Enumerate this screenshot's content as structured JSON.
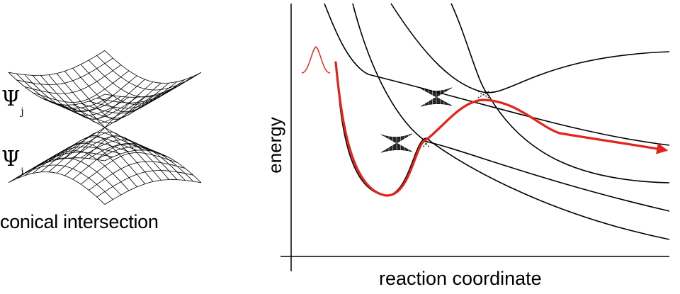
{
  "figure": {
    "inset": {
      "upper_state_symbol": "Ψ",
      "upper_state_subscript": "j",
      "lower_state_symbol": "Ψ",
      "lower_state_subscript": "i",
      "caption": "conical intersection"
    },
    "axes": {
      "xlabel": "reaction coordinate",
      "ylabel": "energy"
    },
    "colors": {
      "curves": "#000000",
      "wavepacket_path": "#e3241b",
      "mesh": "#000000"
    },
    "curve_count": 5,
    "conical_intersection_markers": 2
  }
}
